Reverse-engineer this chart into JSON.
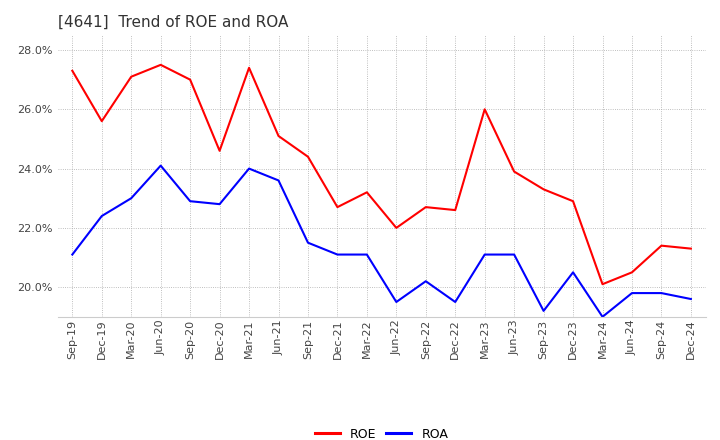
{
  "title": "[4641]  Trend of ROE and ROA",
  "labels": [
    "Sep-19",
    "Dec-19",
    "Mar-20",
    "Jun-20",
    "Sep-20",
    "Dec-20",
    "Mar-21",
    "Jun-21",
    "Sep-21",
    "Dec-21",
    "Mar-22",
    "Jun-22",
    "Sep-22",
    "Dec-22",
    "Mar-23",
    "Jun-23",
    "Sep-23",
    "Dec-23",
    "Mar-24",
    "Jun-24",
    "Sep-24",
    "Dec-24"
  ],
  "ROE": [
    27.3,
    25.6,
    27.1,
    27.5,
    27.0,
    24.6,
    27.4,
    25.1,
    24.4,
    22.7,
    23.2,
    22.0,
    22.7,
    22.6,
    26.0,
    23.9,
    23.3,
    22.9,
    20.1,
    20.5,
    21.4,
    21.3
  ],
  "ROA": [
    21.1,
    22.4,
    23.0,
    24.1,
    22.9,
    22.8,
    24.0,
    23.6,
    21.5,
    21.1,
    21.1,
    19.5,
    20.2,
    19.5,
    21.1,
    21.1,
    19.2,
    20.5,
    19.0,
    19.8,
    19.8,
    19.6
  ],
  "roe_color": "#ff0000",
  "roa_color": "#0000ff",
  "ylim": [
    19.0,
    28.5
  ],
  "yticks": [
    20.0,
    22.0,
    24.0,
    26.0,
    28.0
  ],
  "background_color": "#ffffff",
  "grid_color": "#aaaaaa",
  "title_fontsize": 11,
  "axis_fontsize": 8,
  "legend_fontsize": 9
}
